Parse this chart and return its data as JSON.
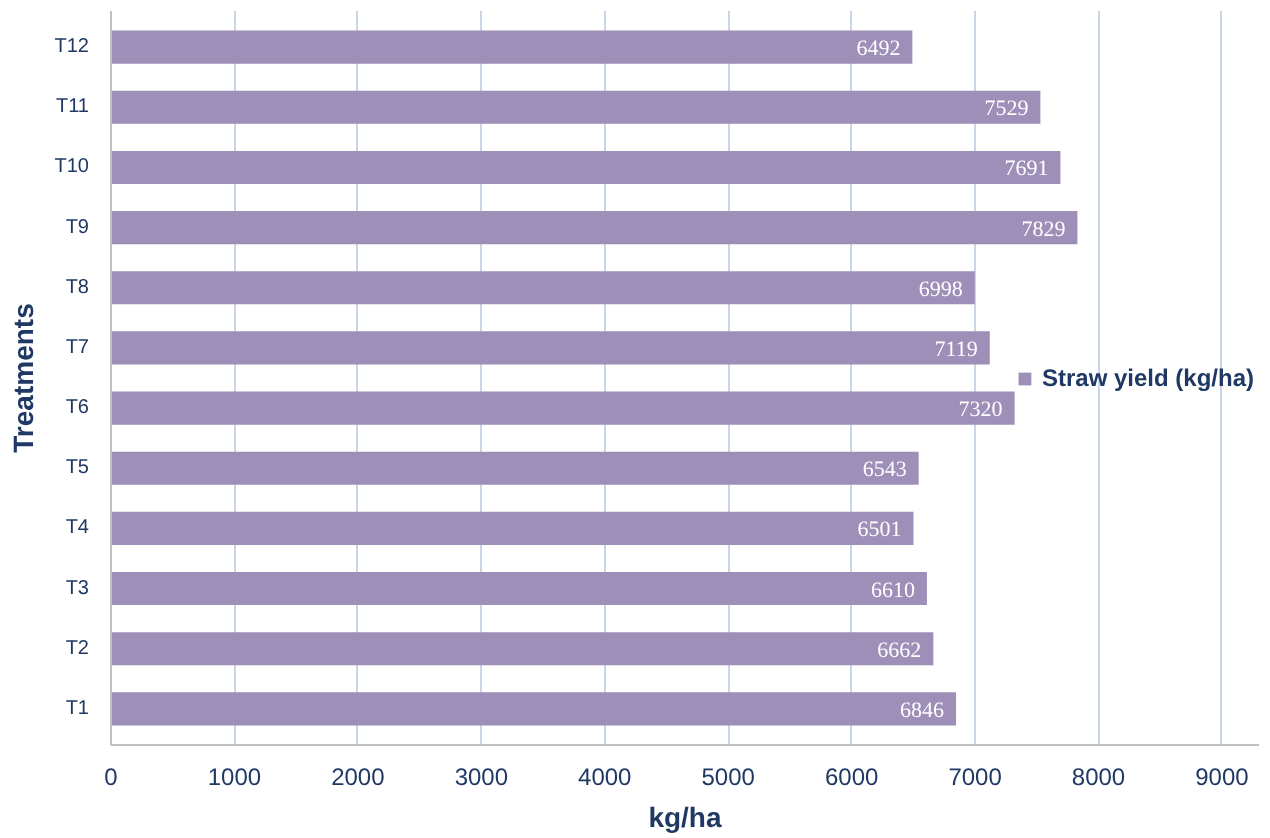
{
  "chart_data": {
    "type": "bar",
    "orientation": "horizontal",
    "xlabel": "kg/ha",
    "ylabel": "Treatments",
    "categories": [
      "T12",
      "T11",
      "T10",
      "T9",
      "T8",
      "T7",
      "T6",
      "T5",
      "T4",
      "T3",
      "T2",
      "T1"
    ],
    "series": [
      {
        "name": "Straw yield (kg/ha)",
        "color": "#9e8fb8",
        "values": [
          6492,
          7529,
          7691,
          7829,
          6998,
          7119,
          7320,
          6543,
          6501,
          6610,
          6662,
          6846
        ]
      }
    ],
    "xlim": [
      0,
      9300
    ],
    "xticks": [
      0,
      1000,
      2000,
      3000,
      4000,
      5000,
      6000,
      7000,
      8000,
      9000
    ],
    "grid": "x",
    "legend": "right",
    "data_labels": true
  }
}
